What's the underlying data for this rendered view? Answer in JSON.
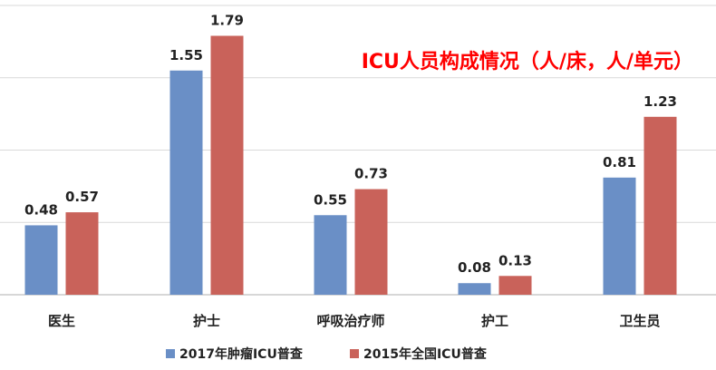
{
  "chart_data": {
    "type": "bar",
    "title": "ICU人员构成情况（人/床，人/单元）",
    "categories": [
      "医生",
      "护士",
      "呼吸治疗师",
      "护工",
      "卫生员"
    ],
    "series": [
      {
        "name": "2017年肿瘤ICU普查",
        "values": [
          0.48,
          1.55,
          0.55,
          0.08,
          0.81
        ]
      },
      {
        "name": "2015年全国ICU普查",
        "values": [
          0.57,
          1.79,
          0.73,
          0.13,
          1.23
        ]
      }
    ],
    "xlabel": "",
    "ylabel": "",
    "ylim": [
      0,
      2.0
    ],
    "grid": true,
    "legend": "bottom"
  },
  "colors": {
    "series": [
      "#6a8fc6",
      "#c9625a"
    ],
    "title": "#ff0000"
  }
}
